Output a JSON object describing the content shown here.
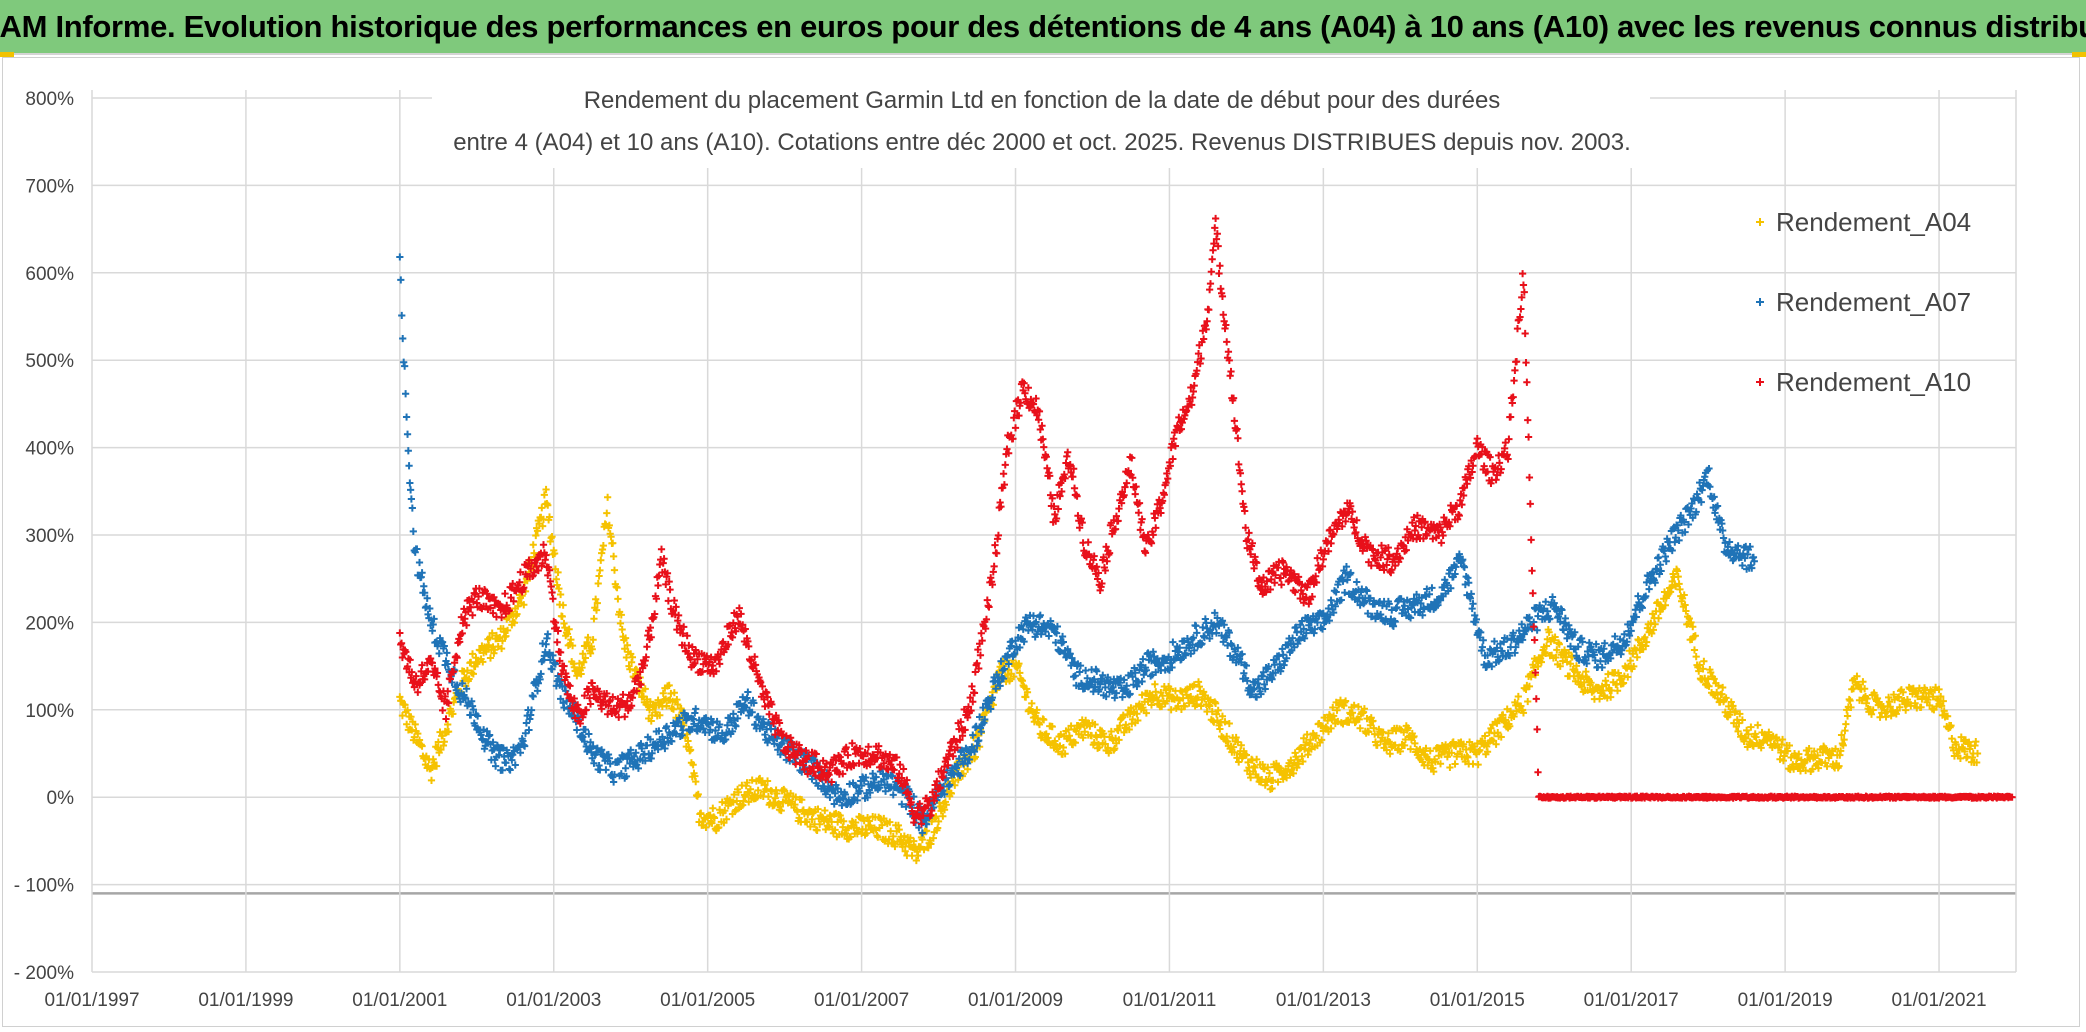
{
  "header": {
    "banner_title": "ADAM Informe. Evolution historique des performances en euros pour des détentions de 4 ans (A04) à 10 ans (A10) avec les revenus connus distribués"
  },
  "chart_data": {
    "type": "scatter",
    "title_line1": "Rendement du placement Garmin Ltd en fonction de la date de début pour des durées",
    "title_line2": "entre 4 (A04) et 10 ans (A10). Cotations entre déc 2000 et oct. 2025. Revenus DISTRIBUES depuis nov. 2003.",
    "xlabel": "",
    "ylabel": "",
    "x_tick_labels": [
      "01/01/1997",
      "01/01/1999",
      "01/01/2001",
      "01/01/2003",
      "01/01/2005",
      "01/01/2007",
      "01/01/2009",
      "01/01/2011",
      "01/01/2013",
      "01/01/2015",
      "01/01/2017",
      "01/01/2019",
      "01/01/2021"
    ],
    "x_range_years": [
      1997.0,
      2022.0
    ],
    "y_tick_labels": [
      "800%",
      "700%",
      "600%",
      "500%",
      "400%",
      "300%",
      "200%",
      "100%",
      "0%",
      "- 100%",
      "- 200%"
    ],
    "y_range_percent": [
      -200,
      800
    ],
    "grid": true,
    "legend_position": "right",
    "marker": "+",
    "series": [
      {
        "name": "Rendement_A04",
        "color": "#f5c200",
        "points": [
          [
            2001.0,
            110
          ],
          [
            2001.2,
            70
          ],
          [
            2001.4,
            30
          ],
          [
            2001.6,
            80
          ],
          [
            2001.8,
            130
          ],
          [
            2002.0,
            160
          ],
          [
            2002.3,
            180
          ],
          [
            2002.6,
            230
          ],
          [
            2002.9,
            340
          ],
          [
            2003.1,
            220
          ],
          [
            2003.3,
            140
          ],
          [
            2003.5,
            180
          ],
          [
            2003.7,
            330
          ],
          [
            2003.9,
            180
          ],
          [
            2004.1,
            130
          ],
          [
            2004.3,
            90
          ],
          [
            2004.5,
            120
          ],
          [
            2004.7,
            80
          ],
          [
            2004.9,
            -20
          ],
          [
            2005.1,
            -25
          ],
          [
            2005.4,
            0
          ],
          [
            2005.7,
            10
          ],
          [
            2006.0,
            -5
          ],
          [
            2006.3,
            -20
          ],
          [
            2006.6,
            -30
          ],
          [
            2006.9,
            -35
          ],
          [
            2007.2,
            -35
          ],
          [
            2007.5,
            -45
          ],
          [
            2007.7,
            -65
          ],
          [
            2007.9,
            -40
          ],
          [
            2008.2,
            20
          ],
          [
            2008.5,
            60
          ],
          [
            2008.8,
            140
          ],
          [
            2009.0,
            150
          ],
          [
            2009.3,
            80
          ],
          [
            2009.6,
            60
          ],
          [
            2009.9,
            80
          ],
          [
            2010.2,
            60
          ],
          [
            2010.5,
            90
          ],
          [
            2010.8,
            120
          ],
          [
            2011.1,
            110
          ],
          [
            2011.4,
            120
          ],
          [
            2011.7,
            80
          ],
          [
            2012.0,
            40
          ],
          [
            2012.3,
            20
          ],
          [
            2012.6,
            40
          ],
          [
            2012.9,
            70
          ],
          [
            2013.2,
            100
          ],
          [
            2013.5,
            90
          ],
          [
            2013.8,
            60
          ],
          [
            2014.1,
            70
          ],
          [
            2014.4,
            40
          ],
          [
            2014.7,
            50
          ],
          [
            2015.0,
            50
          ],
          [
            2015.3,
            80
          ],
          [
            2015.6,
            110
          ],
          [
            2015.9,
            180
          ],
          [
            2016.2,
            150
          ],
          [
            2016.5,
            120
          ],
          [
            2016.8,
            130
          ],
          [
            2017.1,
            170
          ],
          [
            2017.4,
            220
          ],
          [
            2017.6,
            250
          ],
          [
            2017.9,
            150
          ],
          [
            2018.2,
            110
          ],
          [
            2018.5,
            70
          ],
          [
            2018.8,
            70
          ],
          [
            2019.1,
            40
          ],
          [
            2019.4,
            45
          ],
          [
            2019.7,
            45
          ],
          [
            2019.9,
            130
          ],
          [
            2020.2,
            100
          ],
          [
            2020.5,
            110
          ],
          [
            2020.8,
            115
          ],
          [
            2021.0,
            110
          ],
          [
            2021.2,
            60
          ],
          [
            2021.5,
            50
          ]
        ]
      },
      {
        "name": "Rendement_A07",
        "color": "#1f73b7",
        "points": [
          [
            2001.0,
            630
          ],
          [
            2001.05,
            500
          ],
          [
            2001.1,
            420
          ],
          [
            2001.15,
            340
          ],
          [
            2001.2,
            280
          ],
          [
            2001.4,
            200
          ],
          [
            2001.6,
            160
          ],
          [
            2001.8,
            120
          ],
          [
            2002.0,
            90
          ],
          [
            2002.2,
            50
          ],
          [
            2002.4,
            40
          ],
          [
            2002.6,
            60
          ],
          [
            2002.9,
            180
          ],
          [
            2003.1,
            120
          ],
          [
            2003.3,
            90
          ],
          [
            2003.5,
            50
          ],
          [
            2003.8,
            30
          ],
          [
            2004.0,
            40
          ],
          [
            2004.3,
            60
          ],
          [
            2004.6,
            80
          ],
          [
            2004.9,
            90
          ],
          [
            2005.2,
            70
          ],
          [
            2005.5,
            110
          ],
          [
            2005.8,
            70
          ],
          [
            2006.1,
            50
          ],
          [
            2006.4,
            30
          ],
          [
            2006.7,
            0
          ],
          [
            2007.0,
            10
          ],
          [
            2007.3,
            20
          ],
          [
            2007.6,
            0
          ],
          [
            2007.8,
            -30
          ],
          [
            2008.1,
            20
          ],
          [
            2008.4,
            50
          ],
          [
            2008.7,
            120
          ],
          [
            2009.0,
            180
          ],
          [
            2009.2,
            200
          ],
          [
            2009.5,
            190
          ],
          [
            2009.8,
            140
          ],
          [
            2010.1,
            130
          ],
          [
            2010.4,
            120
          ],
          [
            2010.7,
            150
          ],
          [
            2011.0,
            160
          ],
          [
            2011.3,
            180
          ],
          [
            2011.6,
            200
          ],
          [
            2011.9,
            160
          ],
          [
            2012.1,
            120
          ],
          [
            2012.4,
            150
          ],
          [
            2012.7,
            190
          ],
          [
            2013.0,
            200
          ],
          [
            2013.3,
            250
          ],
          [
            2013.6,
            220
          ],
          [
            2013.9,
            210
          ],
          [
            2014.2,
            220
          ],
          [
            2014.5,
            230
          ],
          [
            2014.8,
            270
          ],
          [
            2015.1,
            160
          ],
          [
            2015.4,
            170
          ],
          [
            2015.7,
            200
          ],
          [
            2016.0,
            220
          ],
          [
            2016.3,
            170
          ],
          [
            2016.6,
            160
          ],
          [
            2016.9,
            180
          ],
          [
            2017.2,
            240
          ],
          [
            2017.5,
            290
          ],
          [
            2017.8,
            330
          ],
          [
            2018.0,
            370
          ],
          [
            2018.2,
            290
          ],
          [
            2018.4,
            280
          ],
          [
            2018.6,
            270
          ]
        ]
      },
      {
        "name": "Rendement_A10",
        "color": "#e8101a",
        "points": [
          [
            2001.0,
            180
          ],
          [
            2001.2,
            130
          ],
          [
            2001.4,
            150
          ],
          [
            2001.6,
            100
          ],
          [
            2001.8,
            200
          ],
          [
            2002.0,
            230
          ],
          [
            2002.3,
            210
          ],
          [
            2002.6,
            250
          ],
          [
            2002.9,
            280
          ],
          [
            2003.1,
            150
          ],
          [
            2003.3,
            90
          ],
          [
            2003.5,
            120
          ],
          [
            2003.8,
            100
          ],
          [
            2004.0,
            110
          ],
          [
            2004.2,
            160
          ],
          [
            2004.4,
            270
          ],
          [
            2004.6,
            200
          ],
          [
            2004.8,
            160
          ],
          [
            2005.1,
            150
          ],
          [
            2005.4,
            210
          ],
          [
            2005.7,
            120
          ],
          [
            2006.0,
            60
          ],
          [
            2006.3,
            40
          ],
          [
            2006.6,
            30
          ],
          [
            2006.9,
            50
          ],
          [
            2007.2,
            50
          ],
          [
            2007.5,
            30
          ],
          [
            2007.7,
            -20
          ],
          [
            2007.9,
            -10
          ],
          [
            2008.1,
            40
          ],
          [
            2008.4,
            100
          ],
          [
            2008.7,
            250
          ],
          [
            2008.9,
            400
          ],
          [
            2009.1,
            470
          ],
          [
            2009.3,
            440
          ],
          [
            2009.5,
            320
          ],
          [
            2009.7,
            390
          ],
          [
            2009.9,
            290
          ],
          [
            2010.1,
            250
          ],
          [
            2010.3,
            320
          ],
          [
            2010.5,
            380
          ],
          [
            2010.7,
            280
          ],
          [
            2010.9,
            340
          ],
          [
            2011.1,
            420
          ],
          [
            2011.3,
            460
          ],
          [
            2011.5,
            560
          ],
          [
            2011.6,
            650
          ],
          [
            2011.8,
            480
          ],
          [
            2012.0,
            300
          ],
          [
            2012.2,
            240
          ],
          [
            2012.5,
            260
          ],
          [
            2012.8,
            230
          ],
          [
            2013.0,
            280
          ],
          [
            2013.3,
            330
          ],
          [
            2013.6,
            280
          ],
          [
            2013.9,
            270
          ],
          [
            2014.2,
            310
          ],
          [
            2014.5,
            300
          ],
          [
            2014.8,
            340
          ],
          [
            2015.0,
            400
          ],
          [
            2015.2,
            370
          ],
          [
            2015.4,
            400
          ],
          [
            2015.6,
            600
          ],
          [
            2015.8,
            0
          ],
          [
            2016.5,
            0
          ],
          [
            2017.5,
            0
          ],
          [
            2018.5,
            0
          ],
          [
            2019.5,
            0
          ],
          [
            2020.5,
            0
          ],
          [
            2021.5,
            0
          ],
          [
            2021.95,
            0
          ]
        ]
      }
    ]
  }
}
